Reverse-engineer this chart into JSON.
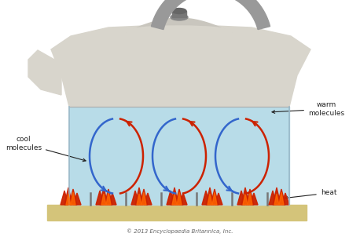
{
  "bg_color": "#ffffff",
  "kettle_body_color": "#d8d5cc",
  "water_color": "#b8dce8",
  "stove_color": "#d4c47a",
  "flame_color_red": "#cc2200",
  "flame_color_orange": "#ff6600",
  "arrow_blue": "#3366cc",
  "arrow_red": "#cc2200",
  "handle_color": "#888888",
  "text_cool": "cool\nmolecules",
  "text_warm": "warm\nmolecules",
  "text_heat": "heat",
  "text_copyright": "© 2013 Encyclopaedia Britannica, Inc.",
  "label_fontsize": 6.5
}
